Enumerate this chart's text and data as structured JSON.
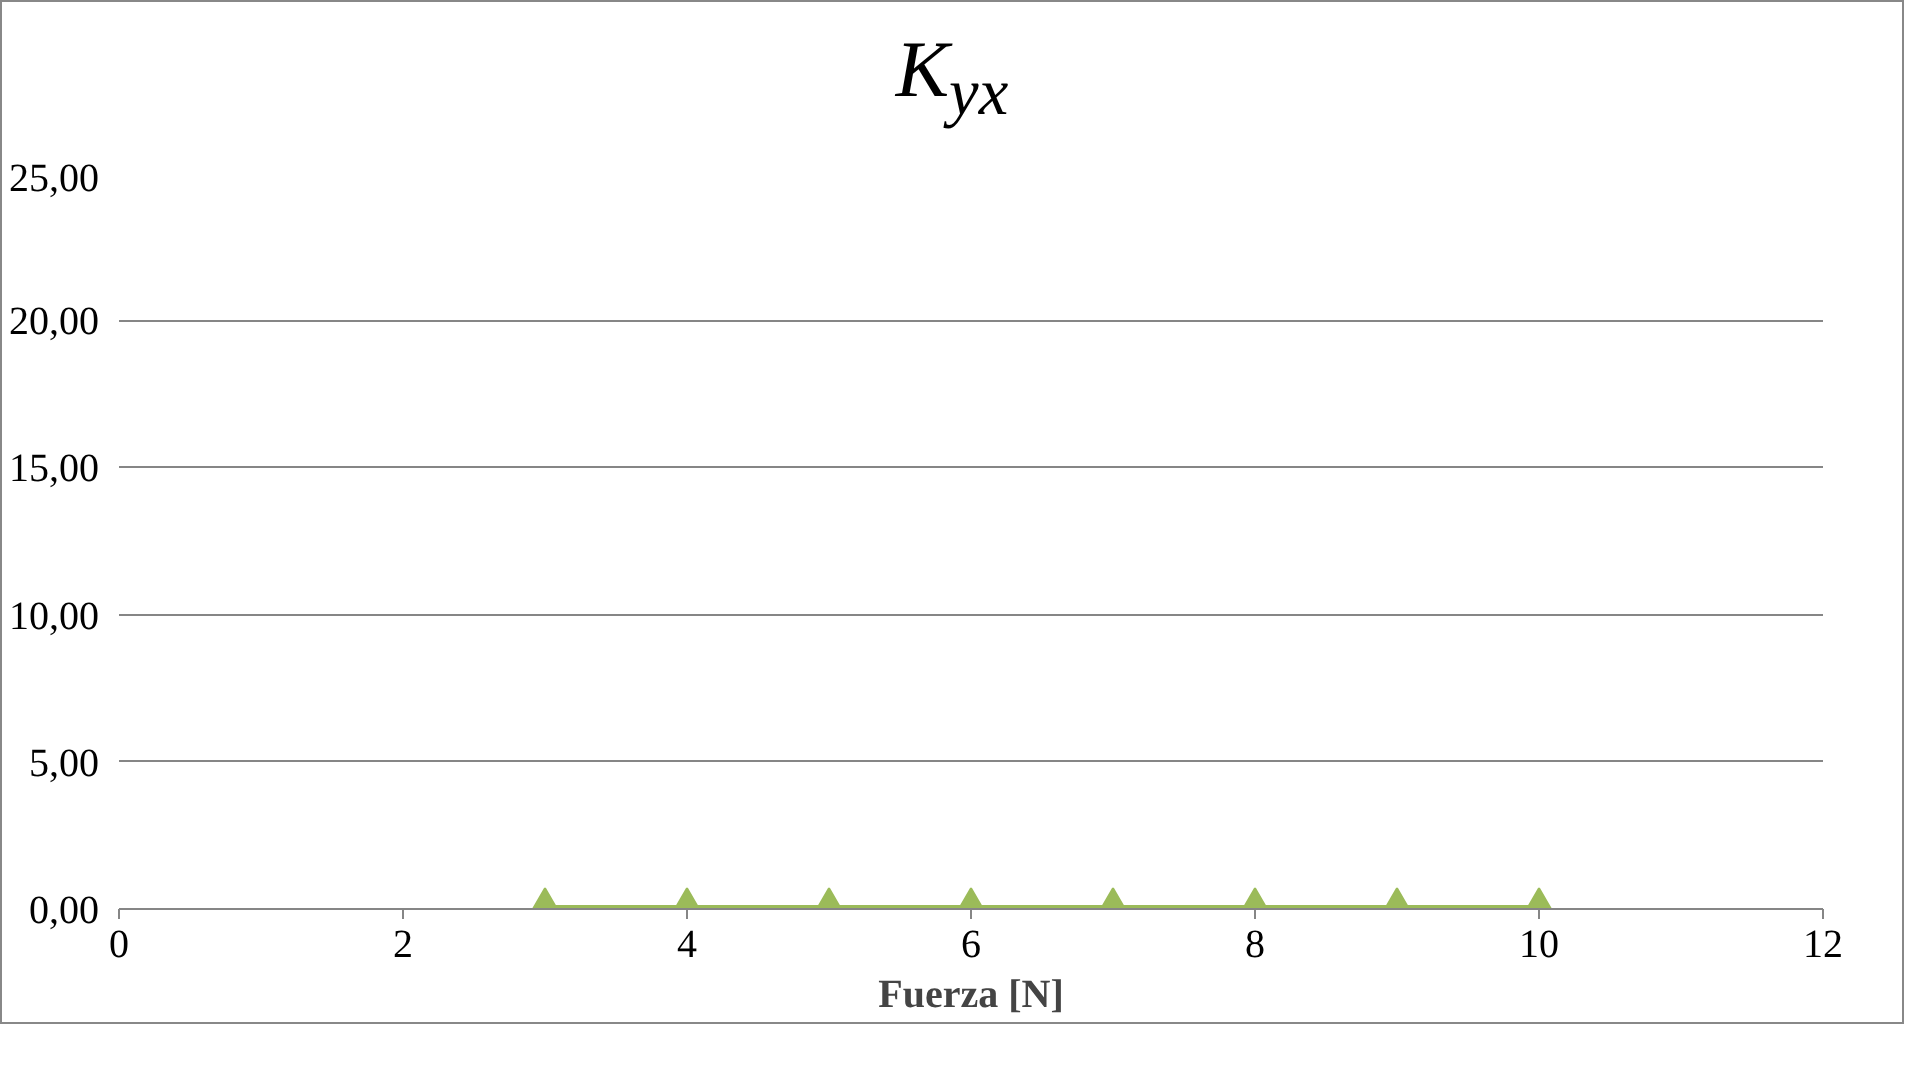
{
  "chart_data": {
    "type": "line",
    "title": "K$_{yx}$",
    "xlabel": "Fuerza [N]",
    "x": [
      3,
      4,
      5,
      6,
      7,
      8,
      9,
      10
    ],
    "series": [
      {
        "color": "#9bbb59",
        "values": [
          0,
          0,
          0,
          0,
          0,
          0,
          0,
          0
        ]
      }
    ],
    "xlim": [
      0,
      12
    ],
    "xticks": [
      0,
      2,
      4,
      6,
      8,
      10,
      12
    ],
    "ylim": [
      0,
      25
    ],
    "yticks": [
      {
        "value": 0,
        "label": "0,00"
      },
      {
        "value": 5,
        "label": "5,00"
      },
      {
        "value": 10,
        "label": "10,00"
      },
      {
        "value": 15,
        "label": "15,00"
      },
      {
        "value": 20,
        "label": "20,00"
      },
      {
        "value": 25,
        "label": "25,00"
      }
    ],
    "grid": "y",
    "marker": "triangle",
    "line_style": "solid"
  }
}
